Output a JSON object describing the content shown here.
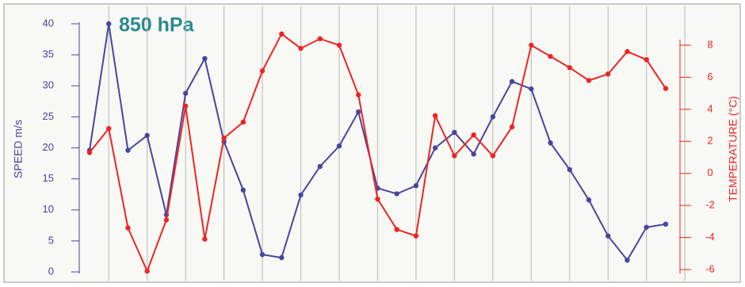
{
  "chart_data": {
    "type": "line",
    "title": "850 hPa",
    "ylabel": "SPEED m/s",
    "y2label": "TEMPERATURE (°C)",
    "categories": [
      null,
      null,
      null,
      null,
      null,
      null,
      null,
      null,
      null,
      null,
      null,
      null,
      null,
      null,
      null,
      null,
      null,
      null,
      null,
      null,
      null,
      null,
      null,
      null,
      null,
      null,
      null,
      null,
      null,
      null,
      null
    ],
    "ylim": [
      0,
      40
    ],
    "yticks": [
      0,
      5,
      10,
      15,
      20,
      25,
      30,
      35,
      40
    ],
    "y2lim": [
      -6,
      8
    ],
    "y2ticks": [
      -6,
      -4,
      -2,
      0,
      2,
      4,
      6,
      8
    ],
    "series": [
      {
        "name": "SPEED m/s",
        "color": "#4a44a0",
        "values": [
          19.6,
          40,
          19.6,
          22,
          9.2,
          28.8,
          34.4,
          21,
          13.2,
          2.8,
          2.3,
          12.4,
          17,
          20.3,
          25.8,
          13.5,
          12.6,
          13.9,
          20,
          22.5,
          19,
          25,
          30.7,
          29.5,
          20.8,
          16.5,
          11.6,
          5.8,
          1.9,
          7.2,
          7.7
        ]
      },
      {
        "name": "TEMPERATURE (°C)",
        "color": "#ee2424",
        "axis": "y2",
        "values": [
          1.3,
          2.8,
          -3.4,
          -6.1,
          -2.9,
          4.2,
          -4.1,
          2.2,
          3.2,
          6.4,
          8.7,
          7.8,
          8.4,
          8.0,
          4.9,
          -1.6,
          -3.5,
          -3.9,
          3.6,
          1.1,
          2.4,
          1.1,
          2.9,
          8.0,
          7.3,
          6.6,
          5.8,
          6.2,
          7.6,
          7.1,
          5.3
        ]
      }
    ]
  }
}
